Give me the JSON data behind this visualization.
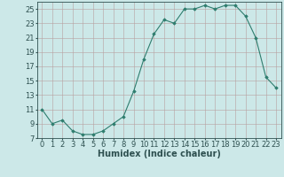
{
  "x": [
    0,
    1,
    2,
    3,
    4,
    5,
    6,
    7,
    8,
    9,
    10,
    11,
    12,
    13,
    14,
    15,
    16,
    17,
    18,
    19,
    20,
    21,
    22,
    23
  ],
  "y": [
    11,
    9,
    9.5,
    8,
    7.5,
    7.5,
    8,
    9,
    10,
    13.5,
    18,
    21.5,
    23.5,
    23,
    25,
    25,
    25.5,
    25,
    25.5,
    25.5,
    24,
    21,
    15.5,
    14
  ],
  "line_color": "#2e7d6e",
  "marker": "D",
  "marker_size": 1.8,
  "bg_color": "#cce8e8",
  "grid_color": "#b8a0a0",
  "xlabel": "Humidex (Indice chaleur)",
  "xlim": [
    -0.5,
    23.5
  ],
  "ylim": [
    7,
    26
  ],
  "yticks": [
    7,
    9,
    11,
    13,
    15,
    17,
    19,
    21,
    23,
    25
  ],
  "xticks": [
    0,
    1,
    2,
    3,
    4,
    5,
    6,
    7,
    8,
    9,
    10,
    11,
    12,
    13,
    14,
    15,
    16,
    17,
    18,
    19,
    20,
    21,
    22,
    23
  ],
  "xlabel_fontsize": 7,
  "tick_fontsize": 6,
  "tick_color": "#2e5050",
  "spine_color": "#2e5050"
}
